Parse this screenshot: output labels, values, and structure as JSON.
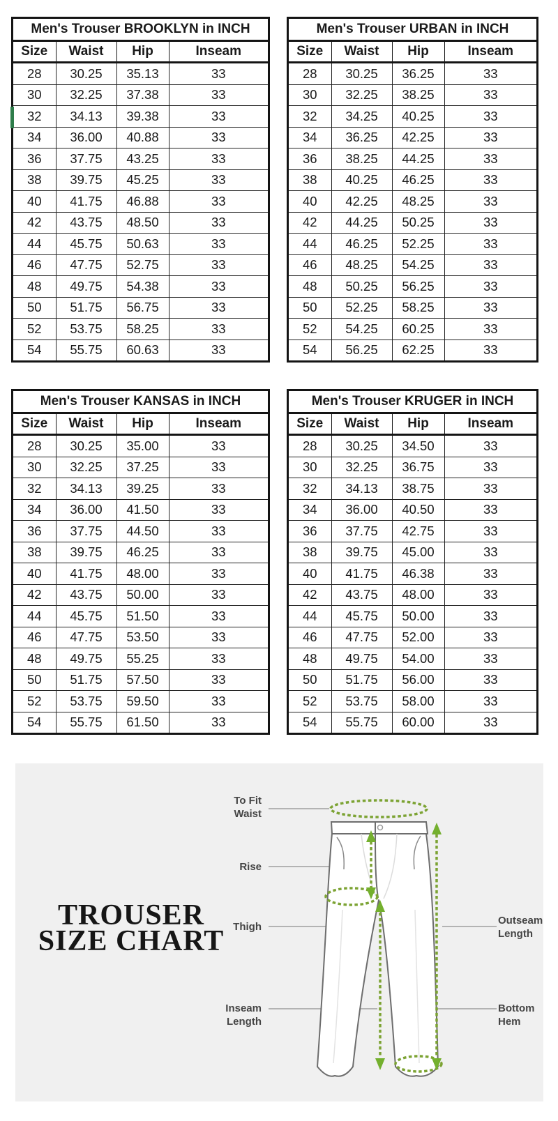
{
  "tables": [
    {
      "title": "Men's Trouser BROOKLYN in INCH",
      "columns": [
        "Size",
        "Waist",
        "Hip",
        "Inseam"
      ],
      "rows": [
        [
          "28",
          "30.25",
          "35.13",
          "33"
        ],
        [
          "30",
          "32.25",
          "37.38",
          "33"
        ],
        [
          "32",
          "34.13",
          "39.38",
          "33"
        ],
        [
          "34",
          "36.00",
          "40.88",
          "33"
        ],
        [
          "36",
          "37.75",
          "43.25",
          "33"
        ],
        [
          "38",
          "39.75",
          "45.25",
          "33"
        ],
        [
          "40",
          "41.75",
          "46.88",
          "33"
        ],
        [
          "42",
          "43.75",
          "48.50",
          "33"
        ],
        [
          "44",
          "45.75",
          "50.63",
          "33"
        ],
        [
          "46",
          "47.75",
          "52.75",
          "33"
        ],
        [
          "48",
          "49.75",
          "54.38",
          "33"
        ],
        [
          "50",
          "51.75",
          "56.75",
          "33"
        ],
        [
          "52",
          "53.75",
          "58.25",
          "33"
        ],
        [
          "54",
          "55.75",
          "60.63",
          "33"
        ]
      ]
    },
    {
      "title": "Men's Trouser URBAN in INCH",
      "columns": [
        "Size",
        "Waist",
        "Hip",
        "Inseam"
      ],
      "rows": [
        [
          "28",
          "30.25",
          "36.25",
          "33"
        ],
        [
          "30",
          "32.25",
          "38.25",
          "33"
        ],
        [
          "32",
          "34.25",
          "40.25",
          "33"
        ],
        [
          "34",
          "36.25",
          "42.25",
          "33"
        ],
        [
          "36",
          "38.25",
          "44.25",
          "33"
        ],
        [
          "38",
          "40.25",
          "46.25",
          "33"
        ],
        [
          "40",
          "42.25",
          "48.25",
          "33"
        ],
        [
          "42",
          "44.25",
          "50.25",
          "33"
        ],
        [
          "44",
          "46.25",
          "52.25",
          "33"
        ],
        [
          "46",
          "48.25",
          "54.25",
          "33"
        ],
        [
          "48",
          "50.25",
          "56.25",
          "33"
        ],
        [
          "50",
          "52.25",
          "58.25",
          "33"
        ],
        [
          "52",
          "54.25",
          "60.25",
          "33"
        ],
        [
          "54",
          "56.25",
          "62.25",
          "33"
        ]
      ]
    },
    {
      "title": "Men's Trouser KANSAS in INCH",
      "columns": [
        "Size",
        "Waist",
        "Hip",
        "Inseam"
      ],
      "rows": [
        [
          "28",
          "30.25",
          "35.00",
          "33"
        ],
        [
          "30",
          "32.25",
          "37.25",
          "33"
        ],
        [
          "32",
          "34.13",
          "39.25",
          "33"
        ],
        [
          "34",
          "36.00",
          "41.50",
          "33"
        ],
        [
          "36",
          "37.75",
          "44.50",
          "33"
        ],
        [
          "38",
          "39.75",
          "46.25",
          "33"
        ],
        [
          "40",
          "41.75",
          "48.00",
          "33"
        ],
        [
          "42",
          "43.75",
          "50.00",
          "33"
        ],
        [
          "44",
          "45.75",
          "51.50",
          "33"
        ],
        [
          "46",
          "47.75",
          "53.50",
          "33"
        ],
        [
          "48",
          "49.75",
          "55.25",
          "33"
        ],
        [
          "50",
          "51.75",
          "57.50",
          "33"
        ],
        [
          "52",
          "53.75",
          "59.50",
          "33"
        ],
        [
          "54",
          "55.75",
          "61.50",
          "33"
        ]
      ]
    },
    {
      "title": "Men's Trouser KRUGER in INCH",
      "columns": [
        "Size",
        "Waist",
        "Hip",
        "Inseam"
      ],
      "rows": [
        [
          "28",
          "30.25",
          "34.50",
          "33"
        ],
        [
          "30",
          "32.25",
          "36.75",
          "33"
        ],
        [
          "32",
          "34.13",
          "38.75",
          "33"
        ],
        [
          "34",
          "36.00",
          "40.50",
          "33"
        ],
        [
          "36",
          "37.75",
          "42.75",
          "33"
        ],
        [
          "38",
          "39.75",
          "45.00",
          "33"
        ],
        [
          "40",
          "41.75",
          "46.38",
          "33"
        ],
        [
          "42",
          "43.75",
          "48.00",
          "33"
        ],
        [
          "44",
          "45.75",
          "50.00",
          "33"
        ],
        [
          "46",
          "47.75",
          "52.00",
          "33"
        ],
        [
          "48",
          "49.75",
          "54.00",
          "33"
        ],
        [
          "50",
          "51.75",
          "56.00",
          "33"
        ],
        [
          "52",
          "53.75",
          "58.00",
          "33"
        ],
        [
          "54",
          "55.75",
          "60.00",
          "33"
        ]
      ]
    }
  ],
  "diagram": {
    "title_line1": "TROUSER",
    "title_line2": "SIZE CHART",
    "labels": {
      "to_fit_waist": [
        "To Fit",
        "Waist"
      ],
      "rise": [
        "Rise"
      ],
      "thigh": [
        "Thigh"
      ],
      "inseam": [
        "Inseam",
        "Length"
      ],
      "outseam": [
        "Outseam",
        "Length"
      ],
      "bottom_hem": [
        "Bottom",
        "Hem"
      ]
    },
    "colors": {
      "dash_green": "#7ca333",
      "arrow_green": "#74b02e",
      "panel_bg": "#f0f0f0",
      "table_border": "#141414",
      "row_marker_green": "#2e7d4a"
    }
  }
}
